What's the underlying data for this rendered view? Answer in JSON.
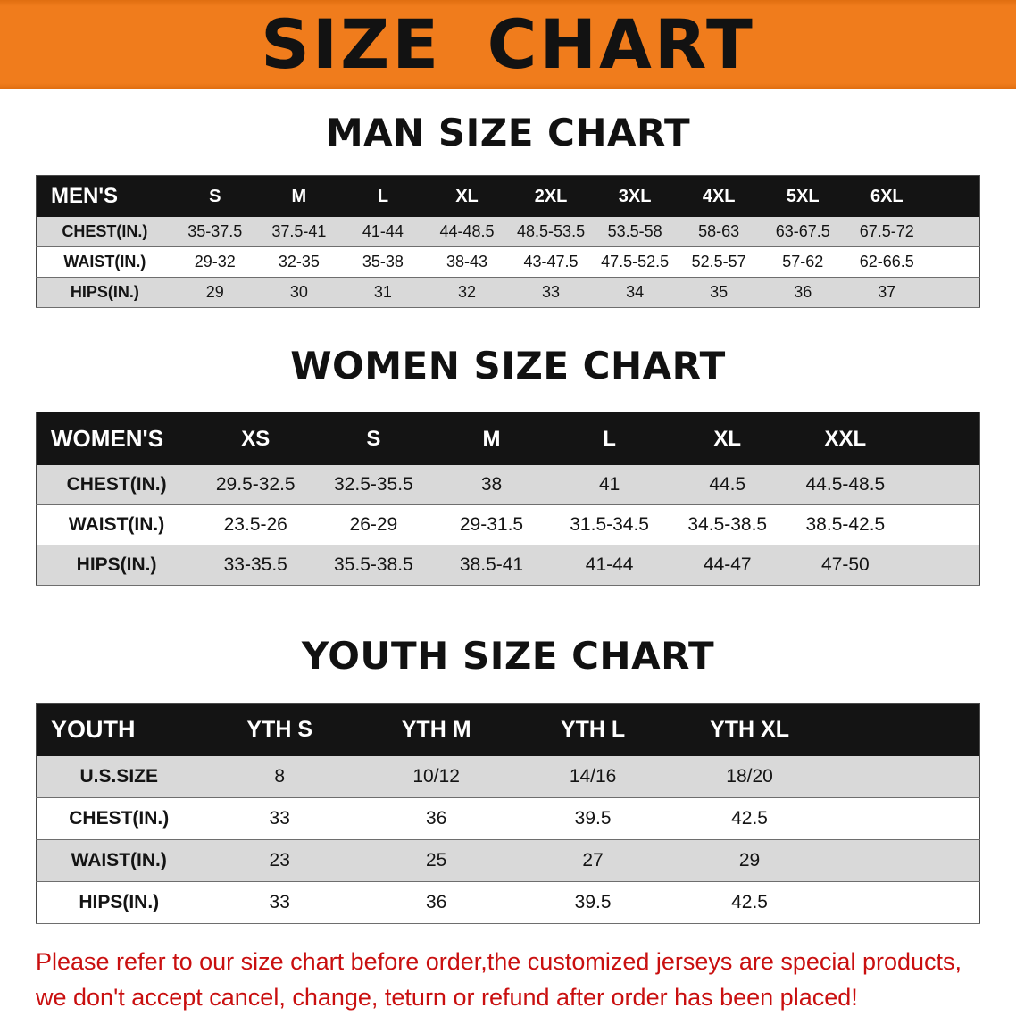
{
  "banner": {
    "title": "SIZE CHART"
  },
  "colors": {
    "banner_bg": "#f07c1c",
    "table_header_bg": "#141414",
    "row_stripe": "#d9d9d9",
    "footer_text": "#c90f0f",
    "heading_text": "#111111"
  },
  "sections": [
    {
      "heading": "MAN SIZE CHART",
      "table": {
        "corner": "MEN'S",
        "columns": [
          "S",
          "M",
          "L",
          "XL",
          "2XL",
          "3XL",
          "4XL",
          "5XL",
          "6XL"
        ],
        "rows": [
          {
            "label": "CHEST(IN.)",
            "values": [
              "35-37.5",
              "37.5-41",
              "41-44",
              "44-48.5",
              "48.5-53.5",
              "53.5-58",
              "58-63",
              "63-67.5",
              "67.5-72"
            ]
          },
          {
            "label": "WAIST(IN.)",
            "values": [
              "29-32",
              "32-35",
              "35-38",
              "38-43",
              "43-47.5",
              "47.5-52.5",
              "52.5-57",
              "57-62",
              "62-66.5"
            ]
          },
          {
            "label": "HIPS(IN.)",
            "values": [
              "29",
              "30",
              "31",
              "32",
              "33",
              "34",
              "35",
              "36",
              "37"
            ]
          }
        ]
      }
    },
    {
      "heading": "WOMEN SIZE CHART",
      "table": {
        "corner": "WOMEN'S",
        "columns": [
          "XS",
          "S",
          "M",
          "L",
          "XL",
          "XXL"
        ],
        "rows": [
          {
            "label": "CHEST(IN.)",
            "values": [
              "29.5-32.5",
              "32.5-35.5",
              "38",
              "41",
              "44.5",
              "44.5-48.5"
            ]
          },
          {
            "label": "WAIST(IN.)",
            "values": [
              "23.5-26",
              "26-29",
              "29-31.5",
              "31.5-34.5",
              "34.5-38.5",
              "38.5-42.5"
            ]
          },
          {
            "label": "HIPS(IN.)",
            "values": [
              "33-35.5",
              "35.5-38.5",
              "38.5-41",
              "41-44",
              "44-47",
              "47-50"
            ]
          }
        ]
      }
    },
    {
      "heading": "YOUTH SIZE CHART",
      "table": {
        "corner": "YOUTH",
        "columns": [
          "YTH S",
          "YTH M",
          "YTH L",
          "YTH XL"
        ],
        "rows": [
          {
            "label": "U.S.SIZE",
            "values": [
              "8",
              "10/12",
              "14/16",
              "18/20"
            ]
          },
          {
            "label": "CHEST(IN.)",
            "values": [
              "33",
              "36",
              "39.5",
              "42.5"
            ]
          },
          {
            "label": "WAIST(IN.)",
            "values": [
              "23",
              "25",
              "27",
              "29"
            ]
          },
          {
            "label": "HIPS(IN.)",
            "values": [
              "33",
              "36",
              "39.5",
              "42.5"
            ]
          }
        ]
      }
    }
  ],
  "footer": {
    "line1": "Please refer to our size chart before order,the customized jerseys are special products,",
    "line2": "we don't accept cancel, change, teturn or refund after order has been placed!"
  }
}
